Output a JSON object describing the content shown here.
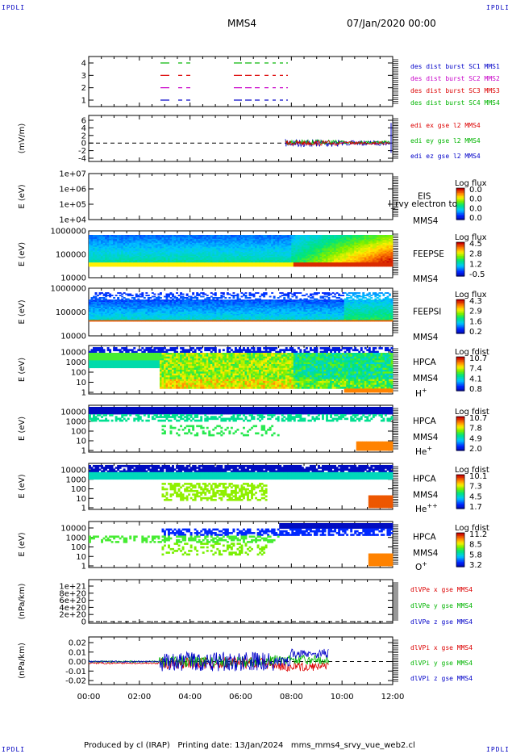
{
  "corners": {
    "tl": "IPDLI",
    "tr": "IPDLI",
    "bl": "IPDLI",
    "br": "IPDLI"
  },
  "header": {
    "title": "MMS4",
    "date": "07/Jan/2020 00:00"
  },
  "footer": "Produced by cl (IRAP)   Printing date: 13/Jan/2024   mms_mms4_srvy_vue_web2.cl",
  "colors": {
    "mms1": "#0000c8",
    "mms2": "#c800c8",
    "mms3": "#dc0000",
    "mms4": "#00b400",
    "x": "#dc0000",
    "y": "#00b400",
    "z": "#0000c8"
  },
  "chart_data": [
    {
      "id": "p1",
      "type": "line",
      "ylabel": "",
      "yticks": [
        "1",
        "2",
        "3",
        "4"
      ],
      "ylim": [
        0.6,
        4.4
      ],
      "legend": [
        "des dist burst SC1 MMS1",
        "des dist burst SC2 MMS2",
        "des dist burst SC3 MMS3",
        "des dist burst SC4 MMS4"
      ],
      "series": [
        {
          "name": "des dist burst SC4 MMS4",
          "level": 4
        },
        {
          "name": "des dist burst SC3 MMS3",
          "level": 3
        },
        {
          "name": "des dist burst SC2 MMS2",
          "level": 2
        },
        {
          "name": "des dist burst SC1 MMS1",
          "level": 1
        }
      ]
    },
    {
      "id": "p2",
      "type": "line",
      "ylabel": "(mV/m)",
      "yticks": [
        "-4",
        "-2",
        "0",
        "2",
        "4",
        "6"
      ],
      "ylim": [
        -5,
        7
      ],
      "legend": [
        "edi ex gse l2 MMS4",
        "edi ey gse l2 MMS4",
        "edi ez gse l2 MMS4"
      ]
    },
    {
      "id": "p3",
      "type": "heatmap",
      "ylabel": "E (eV)",
      "yticks": [
        "1e+04",
        "1e+05",
        "1e+06",
        "1e+07"
      ],
      "ylim": [
        10000,
        10000000
      ],
      "label": "EIS",
      "label2": "MMS4",
      "overlay": "l_rvy electron to",
      "cb_title": "Log flux",
      "cb_ticks": [
        "0.0",
        "0.0",
        "0.0",
        "0.0"
      ]
    },
    {
      "id": "p4",
      "type": "heatmap",
      "ylabel": "E (eV)",
      "yticks": [
        "10000",
        "100000",
        "1000000"
      ],
      "ylim": [
        10000,
        1000000
      ],
      "label": "FEEPSE",
      "label2": "MMS4",
      "cb_title": "Log flux",
      "cb_ticks": [
        "4.5",
        "2.8",
        "1.2",
        "-0.5"
      ]
    },
    {
      "id": "p5",
      "type": "heatmap",
      "ylabel": "E (eV)",
      "yticks": [
        "10000",
        "100000",
        "1000000"
      ],
      "ylim": [
        10000,
        1000000
      ],
      "label": "FEEPSI",
      "label2": "MMS4",
      "cb_title": "Log flux",
      "cb_ticks": [
        "4.3",
        "2.9",
        "1.6",
        "0.2"
      ]
    },
    {
      "id": "p6",
      "type": "heatmap",
      "ylabel": "E (eV)",
      "yticks": [
        "1",
        "10",
        "100",
        "1000",
        "10000"
      ],
      "ylim": [
        1,
        40000
      ],
      "label": "HPCA",
      "label2": "MMS4",
      "species": "H",
      "charge": "+",
      "cb_title": "Log fdist",
      "cb_ticks": [
        "10.7",
        "7.4",
        "4.1",
        "0.8"
      ]
    },
    {
      "id": "p7",
      "type": "heatmap",
      "ylabel": "E (eV)",
      "yticks": [
        "1",
        "10",
        "100",
        "1000",
        "10000"
      ],
      "ylim": [
        1,
        40000
      ],
      "label": "HPCA",
      "label2": "MMS4",
      "species": "He",
      "charge": "+",
      "cb_title": "Log fdist",
      "cb_ticks": [
        "10.7",
        "7.8",
        "4.9",
        "2.0"
      ]
    },
    {
      "id": "p8",
      "type": "heatmap",
      "ylabel": "E (eV)",
      "yticks": [
        "1",
        "10",
        "100",
        "1000",
        "10000"
      ],
      "ylim": [
        1,
        40000
      ],
      "label": "HPCA",
      "label2": "MMS4",
      "species": "He",
      "charge": "++",
      "cb_title": "Log fdist",
      "cb_ticks": [
        "10.1",
        "7.3",
        "4.5",
        "1.7"
      ]
    },
    {
      "id": "p9",
      "type": "heatmap",
      "ylabel": "E (eV)",
      "yticks": [
        "1",
        "10",
        "100",
        "1000",
        "10000"
      ],
      "ylim": [
        1,
        40000
      ],
      "label": "HPCA",
      "label2": "MMS4",
      "species": "O",
      "charge": "+",
      "cb_title": "Log fdist",
      "cb_ticks": [
        "11.2",
        "8.5",
        "5.8",
        "3.2"
      ]
    },
    {
      "id": "p10",
      "type": "line",
      "ylabel": "(nPa/km)",
      "yticks": [
        "0",
        "2e+20",
        "4e+20",
        "6e+20",
        "8e+20",
        "1e+21"
      ],
      "ylim": [
        -1e+20,
        1.1e+21
      ],
      "legend": [
        "dlVPe x gse MMS4",
        "dlVPe y gse MMS4",
        "dlVPe z gse MMS4"
      ]
    },
    {
      "id": "p11",
      "type": "line",
      "ylabel": "(nPa/km)",
      "yticks": [
        "-0.02",
        "-0.01",
        "0.00",
        "0.01",
        "0.02"
      ],
      "ylim": [
        -0.025,
        0.025
      ],
      "legend": [
        "dlVPi x gse MMS4",
        "dlVPi y gse MMS4",
        "dlVPi z gse MMS4"
      ]
    }
  ],
  "xaxis": {
    "ticks": [
      "00:00",
      "02:00",
      "04:00",
      "06:00",
      "08:00",
      "10:00",
      "12:00"
    ],
    "range_hours": [
      0,
      12
    ]
  }
}
